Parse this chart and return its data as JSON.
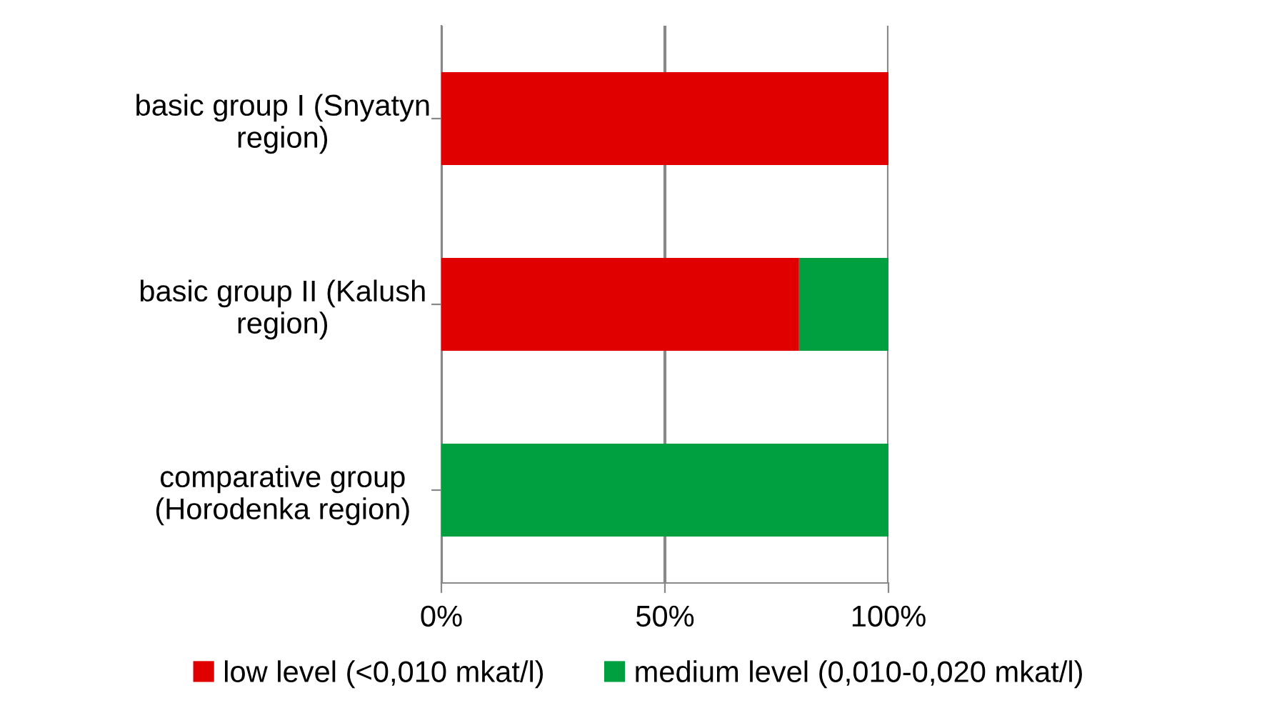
{
  "chart_data": {
    "type": "bar",
    "orientation": "horizontal",
    "stacked": true,
    "categories": [
      "basic group I (Snyatyn\nregion)",
      "basic group II (Kalush\nregion)",
      "comparative group\n(Horodenka region)"
    ],
    "series": [
      {
        "name": "low level (<0,010 mkat/l)",
        "color": "#e00000",
        "values": [
          100,
          80,
          0
        ]
      },
      {
        "name": "medium level (0,010-0,020 mkat/l)",
        "color": "#00a040",
        "values": [
          0,
          20,
          100
        ]
      }
    ],
    "xlim": [
      0,
      100
    ],
    "xticks": [
      {
        "value": 0,
        "label": "0%"
      },
      {
        "value": 50,
        "label": "50%"
      },
      {
        "value": 100,
        "label": "100%"
      }
    ],
    "grid": "x",
    "legend": "bottom"
  }
}
